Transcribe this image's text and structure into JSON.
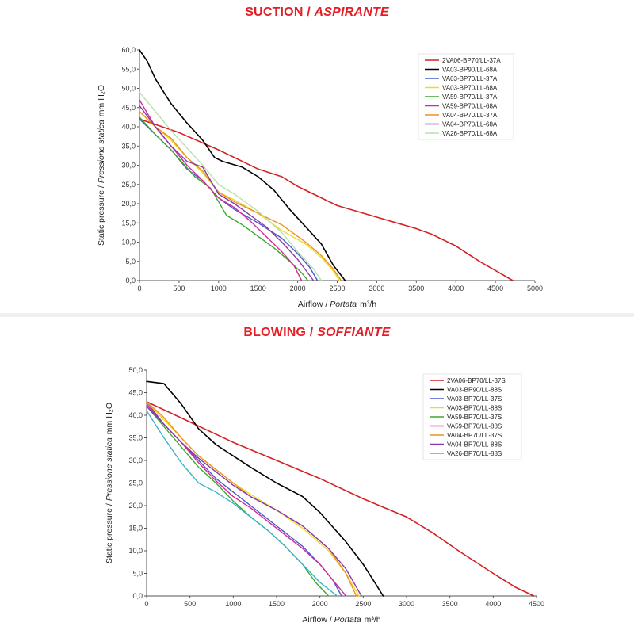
{
  "chart_data": [
    {
      "type": "line",
      "title_main": "SUCTION /",
      "title_italic": "ASPIRANTE",
      "xlabel_main": "Airflow /",
      "xlabel_italic": "Portata",
      "xlabel_unit": "m³/h",
      "ylabel_main": "Static pressure /",
      "ylabel_italic": "Pressione statica",
      "ylabel_unit": "mm H₂O",
      "xlim": [
        0,
        5000
      ],
      "ylim": [
        0,
        60
      ],
      "x_ticks": [
        "0",
        "500",
        "1000",
        "1500",
        "2000",
        "2500",
        "3000",
        "3500",
        "4000",
        "4500",
        "5000"
      ],
      "y_ticks": [
        "0,0",
        "5,0",
        "10,0",
        "15,0",
        "20,0",
        "25,0",
        "30,0",
        "35,0",
        "40,0",
        "45,0",
        "50,0",
        "55,0",
        "60,0"
      ],
      "legend_position": "top-right",
      "series": [
        {
          "name": "2VA06-BP70/LL-37A",
          "color": "#d42020",
          "x": [
            0,
            500,
            1000,
            1500,
            1800,
            2000,
            2500,
            3000,
            3500,
            3700,
            4000,
            4300,
            4720
          ],
          "y": [
            42,
            38.5,
            34,
            29,
            27,
            24.5,
            19.5,
            16.5,
            13.5,
            12,
            9,
            5,
            0
          ]
        },
        {
          "name": "VA03-BP90/LL-68A",
          "color": "#000000",
          "x": [
            0,
            100,
            200,
            400,
            600,
            800,
            950,
            1050,
            1300,
            1500,
            1700,
            1900,
            2100,
            2300,
            2450,
            2600
          ],
          "y": [
            60,
            57,
            52.5,
            46,
            41,
            36.5,
            32,
            31,
            29.5,
            27,
            23.5,
            18.5,
            14,
            9.5,
            4,
            0
          ]
        },
        {
          "name": "VA03-BP70/LL-37A",
          "color": "#4a5ac8",
          "x": [
            0,
            200,
            400,
            600,
            800,
            1000,
            1200,
            1500,
            1800,
            2000,
            2150,
            2250
          ],
          "y": [
            42,
            38,
            34,
            29,
            26,
            21.5,
            18.5,
            15,
            11,
            7,
            3.5,
            0
          ]
        },
        {
          "name": "VA03-BP70/LL-68A",
          "color": "#e8dc2a",
          "x": [
            0,
            200,
            400,
            600,
            800,
            1000,
            1200,
            1500,
            1800,
            2100,
            2300,
            2450,
            2530
          ],
          "y": [
            44,
            40,
            36.5,
            32,
            28,
            23,
            21,
            17.5,
            13,
            9.5,
            6,
            2.5,
            0
          ]
        },
        {
          "name": "VA59-BP70/LL-37A",
          "color": "#3aaa2a",
          "x": [
            0,
            200,
            400,
            700,
            900,
            1100,
            1300,
            1500,
            1700,
            1900,
            2050,
            2130
          ],
          "y": [
            42.5,
            38,
            34,
            27,
            24,
            17,
            14.5,
            11.5,
            8.5,
            5,
            2,
            0
          ]
        },
        {
          "name": "VA59-BP70/LL-68A",
          "color": "#d6289a",
          "x": [
            0,
            200,
            400,
            600,
            800,
            1000,
            1200,
            1400,
            1600,
            1800,
            1950,
            2050
          ],
          "y": [
            47,
            40,
            35,
            30,
            26,
            21.5,
            19,
            15.5,
            11.5,
            7.5,
            4,
            0
          ]
        },
        {
          "name": "VA04-BP70/LL-37A",
          "color": "#f0921c",
          "x": [
            0,
            200,
            400,
            600,
            800,
            1000,
            1200,
            1500,
            1800,
            2100,
            2300,
            2450,
            2550
          ],
          "y": [
            44,
            40,
            37,
            32,
            28.5,
            23,
            20.5,
            17.5,
            14.5,
            10,
            6.5,
            3,
            0
          ]
        },
        {
          "name": "VA04-BP70/LL-68A",
          "color": "#8a3aa8",
          "x": [
            0,
            200,
            400,
            600,
            800,
            1000,
            1200,
            1400,
            1600,
            1800,
            2000,
            2200
          ],
          "y": [
            45.5,
            40,
            35,
            31,
            29.5,
            22.5,
            20,
            17,
            14,
            10,
            5.5,
            0
          ]
        },
        {
          "name": "VA26-BP70/LL-68A",
          "color": "#b8e0b0",
          "x": [
            0,
            200,
            400,
            600,
            800,
            1000,
            1200,
            1500,
            1800,
            2000,
            2200,
            2300
          ],
          "y": [
            49,
            44,
            39,
            34.5,
            30,
            25,
            22.5,
            18,
            12.5,
            7.5,
            3,
            0
          ]
        }
      ]
    },
    {
      "type": "line",
      "title_main": "BLOWING /",
      "title_italic": "SOFFIANTE",
      "xlabel_main": "Airflow /",
      "xlabel_italic": "Portata",
      "xlabel_unit": "m³/h",
      "ylabel_main": "Static pressure /",
      "ylabel_italic": "Pressione statica",
      "ylabel_unit": "mm H₂O",
      "xlim": [
        0,
        4500
      ],
      "ylim": [
        0,
        50
      ],
      "x_ticks": [
        "0",
        "500",
        "1000",
        "1500",
        "2000",
        "2500",
        "3000",
        "3500",
        "4000",
        "4500"
      ],
      "y_ticks": [
        "0,0",
        "5,0",
        "10,0",
        "15,0",
        "20,0",
        "25,0",
        "30,0",
        "35,0",
        "40,0",
        "45,0",
        "50,0"
      ],
      "legend_position": "top-right",
      "series": [
        {
          "name": "2VA06-BP70/LL-37S",
          "color": "#d42020",
          "x": [
            0,
            500,
            1000,
            1500,
            2000,
            2500,
            3000,
            3300,
            3600,
            4000,
            4250,
            4470
          ],
          "y": [
            43,
            38.5,
            34,
            30,
            26,
            21.5,
            17.5,
            14,
            10,
            5,
            2,
            0
          ]
        },
        {
          "name": "VA03-BP90/LL-88S",
          "color": "#000000",
          "x": [
            0,
            200,
            400,
            600,
            800,
            1000,
            1200,
            1500,
            1800,
            2000,
            2300,
            2500,
            2650,
            2730
          ],
          "y": [
            47.5,
            47,
            42.5,
            37,
            33.5,
            31,
            28.5,
            25,
            22,
            18.5,
            12,
            7,
            2.5,
            0
          ]
        },
        {
          "name": "VA03-BP70/LL-37S",
          "color": "#4a5ac8",
          "x": [
            0,
            200,
            400,
            600,
            800,
            1000,
            1200,
            1400,
            1600,
            1800,
            2000,
            2150,
            2250
          ],
          "y": [
            43,
            38,
            34,
            30,
            26,
            23,
            20,
            17,
            14,
            11,
            7,
            3.5,
            0
          ]
        },
        {
          "name": "VA03-BP70/LL-88S",
          "color": "#e8dc2a",
          "x": [
            0,
            200,
            400,
            600,
            800,
            1000,
            1200,
            1500,
            1800,
            2100,
            2300,
            2450
          ],
          "y": [
            43,
            39,
            35,
            31,
            28,
            25,
            22.5,
            19,
            15,
            10,
            5,
            0
          ]
        },
        {
          "name": "VA59-BP70/LL-37S",
          "color": "#3aaa2a",
          "x": [
            0,
            200,
            400,
            600,
            800,
            1000,
            1200,
            1400,
            1600,
            1800,
            1950,
            2100
          ],
          "y": [
            42,
            37.5,
            33,
            28.5,
            25,
            21,
            17.5,
            14.5,
            11,
            7,
            3,
            0
          ]
        },
        {
          "name": "VA59-BP70/LL-88S",
          "color": "#d6289a",
          "x": [
            0,
            200,
            400,
            600,
            800,
            1000,
            1200,
            1400,
            1600,
            1800,
            2000,
            2150,
            2300
          ],
          "y": [
            42.5,
            38,
            34,
            29.5,
            25.5,
            22,
            19.5,
            16.5,
            13.5,
            10.5,
            7,
            3.5,
            0
          ]
        },
        {
          "name": "VA04-BP70/LL-37S",
          "color": "#f0921c",
          "x": [
            0,
            200,
            400,
            600,
            800,
            1000,
            1200,
            1500,
            1800,
            2100,
            2300,
            2420
          ],
          "y": [
            43,
            39.5,
            35,
            31,
            28,
            25,
            22,
            19,
            15.5,
            10.5,
            5,
            0
          ]
        },
        {
          "name": "VA04-BP70/LL-88S",
          "color": "#8a3aa8",
          "x": [
            0,
            200,
            400,
            600,
            800,
            1000,
            1200,
            1500,
            1800,
            2100,
            2300,
            2480
          ],
          "y": [
            42,
            38,
            34,
            30.5,
            27.5,
            24.5,
            22,
            19,
            15.5,
            10.5,
            6,
            0
          ]
        },
        {
          "name": "VA26-BP70/LL-88S",
          "color": "#3ab4c8",
          "x": [
            0,
            200,
            400,
            600,
            800,
            1000,
            1200,
            1400,
            1600,
            1800,
            2000,
            2200
          ],
          "y": [
            41,
            35,
            29.5,
            25,
            23,
            20.5,
            17.5,
            14.5,
            11,
            7,
            3,
            0
          ]
        }
      ]
    }
  ]
}
